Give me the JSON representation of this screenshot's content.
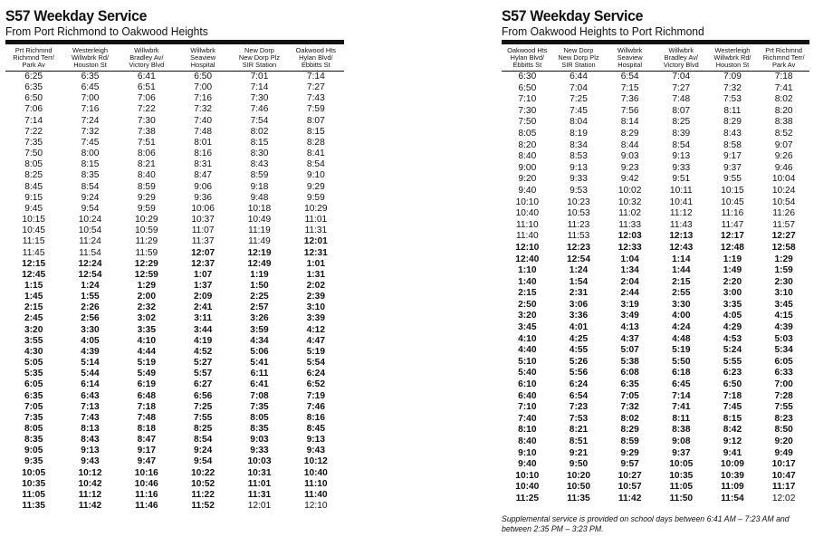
{
  "left": {
    "title": "S57 Weekday Service",
    "subtitle": "From Port Richmond to Oakwood Heights",
    "headers": [
      [
        "Prt Richmnd",
        "Richmnd Terr/",
        "Park Av"
      ],
      [
        "Westerleigh",
        "Willwbrk Rd/",
        "Houston St"
      ],
      [
        "Willwbrk",
        "Bradley Av/",
        "Victory Blvd"
      ],
      [
        "Willwbrk",
        "Seaview",
        "Hospital"
      ],
      [
        "New Dorp",
        "New Dorp Plz",
        "SIR Station"
      ],
      [
        "Oakwood Hts",
        "Hylan Blvd/",
        "Ebbitts St"
      ]
    ],
    "rows": [
      [
        "6:25",
        "6:35",
        "6:41",
        "6:50",
        "7:01",
        "7:14"
      ],
      [
        "6:35",
        "6:45",
        "6:51",
        "7:00",
        "7:14",
        "7:27"
      ],
      [
        "6:50",
        "7:00",
        "7:06",
        "7:16",
        "7:30",
        "7:43"
      ],
      [
        "7:06",
        "7:16",
        "7:22",
        "7:32",
        "7:46",
        "7:59"
      ],
      [
        "7:14",
        "7:24",
        "7:30",
        "7:40",
        "7:54",
        "8:07"
      ],
      [
        "7:22",
        "7:32",
        "7:38",
        "7:48",
        "8:02",
        "8:15"
      ],
      [
        "7:35",
        "7:45",
        "7:51",
        "8:01",
        "8:15",
        "8:28"
      ],
      [
        "7:50",
        "8:00",
        "8:06",
        "8:16",
        "8:30",
        "8:41"
      ],
      [
        "8:05",
        "8:15",
        "8:21",
        "8:31",
        "8:43",
        "8:54"
      ],
      [
        "8:25",
        "8:35",
        "8:40",
        "8:47",
        "8:59",
        "9:10"
      ],
      [
        "8:45",
        "8:54",
        "8:59",
        "9:06",
        "9:18",
        "9:29"
      ],
      [
        "9:15",
        "9:24",
        "9:29",
        "9:36",
        "9:48",
        "9:59"
      ],
      [
        "9:45",
        "9:54",
        "9:59",
        "10:06",
        "10:18",
        "10:29"
      ],
      [
        "10:15",
        "10:24",
        "10:29",
        "10:37",
        "10:49",
        "11:01"
      ],
      [
        "10:45",
        "10:54",
        "10:59",
        "11:07",
        "11:19",
        "11:31"
      ],
      [
        "11:15",
        "11:24",
        "11:29",
        "11:37",
        "11:49",
        "12:01"
      ],
      [
        "11:45",
        "11:54",
        "11:59",
        "12:07",
        "12:19",
        "12:31"
      ],
      [
        "12:15",
        "12:24",
        "12:29",
        "12:37",
        "12:49",
        "1:01"
      ],
      [
        "12:45",
        "12:54",
        "12:59",
        "1:07",
        "1:19",
        "1:31"
      ],
      [
        "1:15",
        "1:24",
        "1:29",
        "1:37",
        "1:50",
        "2:02"
      ],
      [
        "1:45",
        "1:55",
        "2:00",
        "2:09",
        "2:25",
        "2:39"
      ],
      [
        "2:15",
        "2:26",
        "2:32",
        "2:41",
        "2:57",
        "3:10"
      ],
      [
        "2:45",
        "2:56",
        "3:02",
        "3:11",
        "3:26",
        "3:39"
      ],
      [
        "3:20",
        "3:30",
        "3:35",
        "3:44",
        "3:59",
        "4:12"
      ],
      [
        "3:55",
        "4:05",
        "4:10",
        "4:19",
        "4:34",
        "4:47"
      ],
      [
        "4:30",
        "4:39",
        "4:44",
        "4:52",
        "5:06",
        "5:19"
      ],
      [
        "5:05",
        "5:14",
        "5:19",
        "5:27",
        "5:41",
        "5:54"
      ],
      [
        "5:35",
        "5:44",
        "5:49",
        "5:57",
        "6:11",
        "6:24"
      ],
      [
        "6:05",
        "6:14",
        "6:19",
        "6:27",
        "6:41",
        "6:52"
      ],
      [
        "6:35",
        "6:43",
        "6:48",
        "6:56",
        "7:08",
        "7:19"
      ],
      [
        "7:05",
        "7:13",
        "7:18",
        "7:25",
        "7:35",
        "7:46"
      ],
      [
        "7:35",
        "7:43",
        "7:48",
        "7:55",
        "8:05",
        "8:16"
      ],
      [
        "8:05",
        "8:13",
        "8:18",
        "8:25",
        "8:35",
        "8:45"
      ],
      [
        "8:35",
        "8:43",
        "8:47",
        "8:54",
        "9:03",
        "9:13"
      ],
      [
        "9:05",
        "9:13",
        "9:17",
        "9:24",
        "9:33",
        "9:43"
      ],
      [
        "9:35",
        "9:43",
        "9:47",
        "9:54",
        "10:03",
        "10:12"
      ],
      [
        "10:05",
        "10:12",
        "10:16",
        "10:22",
        "10:31",
        "10:40"
      ],
      [
        "10:35",
        "10:42",
        "10:46",
        "10:52",
        "11:01",
        "11:10"
      ],
      [
        "11:05",
        "11:12",
        "11:16",
        "11:22",
        "11:31",
        "11:40"
      ],
      [
        "11:35",
        "11:42",
        "11:46",
        "11:52",
        "12:01",
        "12:10"
      ]
    ],
    "bold": [
      [
        0,
        0,
        0,
        0,
        0,
        0
      ],
      [
        0,
        0,
        0,
        0,
        0,
        0
      ],
      [
        0,
        0,
        0,
        0,
        0,
        0
      ],
      [
        0,
        0,
        0,
        0,
        0,
        0
      ],
      [
        0,
        0,
        0,
        0,
        0,
        0
      ],
      [
        0,
        0,
        0,
        0,
        0,
        0
      ],
      [
        0,
        0,
        0,
        0,
        0,
        0
      ],
      [
        0,
        0,
        0,
        0,
        0,
        0
      ],
      [
        0,
        0,
        0,
        0,
        0,
        0
      ],
      [
        0,
        0,
        0,
        0,
        0,
        0
      ],
      [
        0,
        0,
        0,
        0,
        0,
        0
      ],
      [
        0,
        0,
        0,
        0,
        0,
        0
      ],
      [
        0,
        0,
        0,
        0,
        0,
        0
      ],
      [
        0,
        0,
        0,
        0,
        0,
        0
      ],
      [
        0,
        0,
        0,
        0,
        0,
        0
      ],
      [
        0,
        0,
        0,
        0,
        0,
        1
      ],
      [
        0,
        0,
        0,
        1,
        1,
        1
      ],
      [
        1,
        1,
        1,
        1,
        1,
        1
      ],
      [
        1,
        1,
        1,
        1,
        1,
        1
      ],
      [
        1,
        1,
        1,
        1,
        1,
        1
      ],
      [
        1,
        1,
        1,
        1,
        1,
        1
      ],
      [
        1,
        1,
        1,
        1,
        1,
        1
      ],
      [
        1,
        1,
        1,
        1,
        1,
        1
      ],
      [
        1,
        1,
        1,
        1,
        1,
        1
      ],
      [
        1,
        1,
        1,
        1,
        1,
        1
      ],
      [
        1,
        1,
        1,
        1,
        1,
        1
      ],
      [
        1,
        1,
        1,
        1,
        1,
        1
      ],
      [
        1,
        1,
        1,
        1,
        1,
        1
      ],
      [
        1,
        1,
        1,
        1,
        1,
        1
      ],
      [
        1,
        1,
        1,
        1,
        1,
        1
      ],
      [
        1,
        1,
        1,
        1,
        1,
        1
      ],
      [
        1,
        1,
        1,
        1,
        1,
        1
      ],
      [
        1,
        1,
        1,
        1,
        1,
        1
      ],
      [
        1,
        1,
        1,
        1,
        1,
        1
      ],
      [
        1,
        1,
        1,
        1,
        1,
        1
      ],
      [
        1,
        1,
        1,
        1,
        1,
        1
      ],
      [
        1,
        1,
        1,
        1,
        1,
        1
      ],
      [
        1,
        1,
        1,
        1,
        1,
        1
      ],
      [
        1,
        1,
        1,
        1,
        1,
        1
      ],
      [
        1,
        1,
        1,
        1,
        0,
        0
      ]
    ]
  },
  "right": {
    "title": "S57 Weekday Service",
    "subtitle": "From Oakwood Heights to Port Richmond",
    "headers": [
      [
        "Oakwood Hts",
        "Hylan Blvd/",
        "Ebbitts St"
      ],
      [
        "New Dorp",
        "New Dorp Plz",
        "SIR Station"
      ],
      [
        "Willwbrk",
        "Seaview",
        "Hospital"
      ],
      [
        "Willwbrk",
        "Bradley Av/",
        "Victory Blvd"
      ],
      [
        "Westerleigh",
        "Willwbrk Rd/",
        "Houston St"
      ],
      [
        "Prt Richmnd",
        "Richmnd Terr/",
        "Park Av"
      ]
    ],
    "rows": [
      [
        "6:30",
        "6:44",
        "6:54",
        "7:04",
        "7:09",
        "7:18"
      ],
      [
        "6:50",
        "7:04",
        "7:15",
        "7:27",
        "7:32",
        "7:41"
      ],
      [
        "7:10",
        "7:25",
        "7:36",
        "7:48",
        "7:53",
        "8:02"
      ],
      [
        "7:30",
        "7:45",
        "7:56",
        "8:07",
        "8:11",
        "8:20"
      ],
      [
        "7:50",
        "8:04",
        "8:14",
        "8:25",
        "8:29",
        "8:38"
      ],
      [
        "8:05",
        "8:19",
        "8:29",
        "8:39",
        "8:43",
        "8:52"
      ],
      [
        "8:20",
        "8:34",
        "8:44",
        "8:54",
        "8:58",
        "9:07"
      ],
      [
        "8:40",
        "8:53",
        "9:03",
        "9:13",
        "9:17",
        "9:26"
      ],
      [
        "9:00",
        "9:13",
        "9:23",
        "9:33",
        "9:37",
        "9:46"
      ],
      [
        "9:20",
        "9:33",
        "9:42",
        "9:51",
        "9:55",
        "10:04"
      ],
      [
        "9:40",
        "9:53",
        "10:02",
        "10:11",
        "10:15",
        "10:24"
      ],
      [
        "10:10",
        "10:23",
        "10:32",
        "10:41",
        "10:45",
        "10:54"
      ],
      [
        "10:40",
        "10:53",
        "11:02",
        "11:12",
        "11:16",
        "11:26"
      ],
      [
        "11:10",
        "11:23",
        "11:33",
        "11:43",
        "11:47",
        "11:57"
      ],
      [
        "11:40",
        "11:53",
        "12:03",
        "12:13",
        "12:17",
        "12:27"
      ],
      [
        "12:10",
        "12:23",
        "12:33",
        "12:43",
        "12:48",
        "12:58"
      ],
      [
        "12:40",
        "12:54",
        "1:04",
        "1:14",
        "1:19",
        "1:29"
      ],
      [
        "1:10",
        "1:24",
        "1:34",
        "1:44",
        "1:49",
        "1:59"
      ],
      [
        "1:40",
        "1:54",
        "2:04",
        "2:15",
        "2:20",
        "2:30"
      ],
      [
        "2:15",
        "2:31",
        "2:44",
        "2:55",
        "3:00",
        "3:10"
      ],
      [
        "2:50",
        "3:06",
        "3:19",
        "3:30",
        "3:35",
        "3:45"
      ],
      [
        "3:20",
        "3:36",
        "3:49",
        "4:00",
        "4:05",
        "4:15"
      ],
      [
        "3:45",
        "4:01",
        "4:13",
        "4:24",
        "4:29",
        "4:39"
      ],
      [
        "4:10",
        "4:25",
        "4:37",
        "4:48",
        "4:53",
        "5:03"
      ],
      [
        "4:40",
        "4:55",
        "5:07",
        "5:19",
        "5:24",
        "5:34"
      ],
      [
        "5:10",
        "5:26",
        "5:38",
        "5:50",
        "5:55",
        "6:05"
      ],
      [
        "5:40",
        "5:56",
        "6:08",
        "6:18",
        "6:23",
        "6:33"
      ],
      [
        "6:10",
        "6:24",
        "6:35",
        "6:45",
        "6:50",
        "7:00"
      ],
      [
        "6:40",
        "6:54",
        "7:05",
        "7:14",
        "7:18",
        "7:28"
      ],
      [
        "7:10",
        "7:23",
        "7:32",
        "7:41",
        "7:45",
        "7:55"
      ],
      [
        "7:40",
        "7:53",
        "8:02",
        "8:11",
        "8:15",
        "8:23"
      ],
      [
        "8:10",
        "8:21",
        "8:29",
        "8:38",
        "8:42",
        "8:50"
      ],
      [
        "8:40",
        "8:51",
        "8:59",
        "9:08",
        "9:12",
        "9:20"
      ],
      [
        "9:10",
        "9:21",
        "9:29",
        "9:37",
        "9:41",
        "9:49"
      ],
      [
        "9:40",
        "9:50",
        "9:57",
        "10:05",
        "10:09",
        "10:17"
      ],
      [
        "10:10",
        "10:20",
        "10:27",
        "10:35",
        "10:39",
        "10:47"
      ],
      [
        "10:40",
        "10:50",
        "10:57",
        "11:05",
        "11:09",
        "11:17"
      ],
      [
        "11:25",
        "11:35",
        "11:42",
        "11:50",
        "11:54",
        "12:02"
      ]
    ],
    "bold": [
      [
        0,
        0,
        0,
        0,
        0,
        0
      ],
      [
        0,
        0,
        0,
        0,
        0,
        0
      ],
      [
        0,
        0,
        0,
        0,
        0,
        0
      ],
      [
        0,
        0,
        0,
        0,
        0,
        0
      ],
      [
        0,
        0,
        0,
        0,
        0,
        0
      ],
      [
        0,
        0,
        0,
        0,
        0,
        0
      ],
      [
        0,
        0,
        0,
        0,
        0,
        0
      ],
      [
        0,
        0,
        0,
        0,
        0,
        0
      ],
      [
        0,
        0,
        0,
        0,
        0,
        0
      ],
      [
        0,
        0,
        0,
        0,
        0,
        0
      ],
      [
        0,
        0,
        0,
        0,
        0,
        0
      ],
      [
        0,
        0,
        0,
        0,
        0,
        0
      ],
      [
        0,
        0,
        0,
        0,
        0,
        0
      ],
      [
        0,
        0,
        0,
        0,
        0,
        0
      ],
      [
        0,
        0,
        1,
        1,
        1,
        1
      ],
      [
        1,
        1,
        1,
        1,
        1,
        1
      ],
      [
        1,
        1,
        1,
        1,
        1,
        1
      ],
      [
        1,
        1,
        1,
        1,
        1,
        1
      ],
      [
        1,
        1,
        1,
        1,
        1,
        1
      ],
      [
        1,
        1,
        1,
        1,
        1,
        1
      ],
      [
        1,
        1,
        1,
        1,
        1,
        1
      ],
      [
        1,
        1,
        1,
        1,
        1,
        1
      ],
      [
        1,
        1,
        1,
        1,
        1,
        1
      ],
      [
        1,
        1,
        1,
        1,
        1,
        1
      ],
      [
        1,
        1,
        1,
        1,
        1,
        1
      ],
      [
        1,
        1,
        1,
        1,
        1,
        1
      ],
      [
        1,
        1,
        1,
        1,
        1,
        1
      ],
      [
        1,
        1,
        1,
        1,
        1,
        1
      ],
      [
        1,
        1,
        1,
        1,
        1,
        1
      ],
      [
        1,
        1,
        1,
        1,
        1,
        1
      ],
      [
        1,
        1,
        1,
        1,
        1,
        1
      ],
      [
        1,
        1,
        1,
        1,
        1,
        1
      ],
      [
        1,
        1,
        1,
        1,
        1,
        1
      ],
      [
        1,
        1,
        1,
        1,
        1,
        1
      ],
      [
        1,
        1,
        1,
        1,
        1,
        1
      ],
      [
        1,
        1,
        1,
        1,
        1,
        1
      ],
      [
        1,
        1,
        1,
        1,
        1,
        1
      ],
      [
        1,
        1,
        1,
        1,
        1,
        0
      ]
    ],
    "note": "Supplemental service is provided on school days between 6:41 AM – 7:23 AM and between 2:35 PM – 3:23 PM."
  }
}
